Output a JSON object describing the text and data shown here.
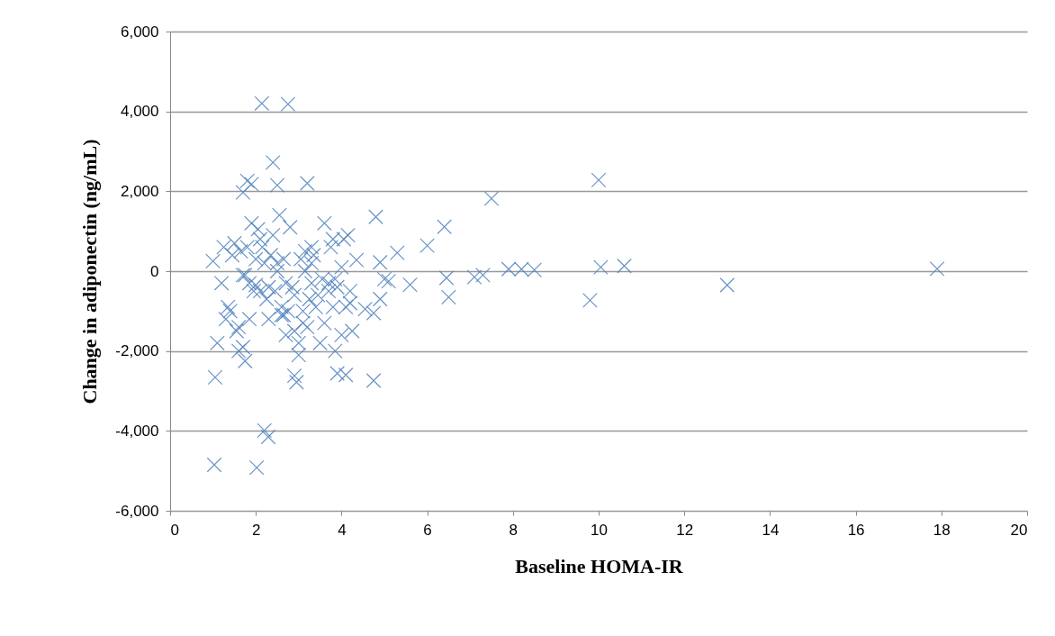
{
  "chart_data": {
    "type": "scatter",
    "xlabel": "Baseline HOMA-IR",
    "ylabel": "Change in adiponectin (ng/mL)",
    "xlim": [
      0,
      20
    ],
    "ylim": [
      -6000,
      6000
    ],
    "xticks": [
      0,
      2,
      4,
      6,
      8,
      10,
      12,
      14,
      16,
      18,
      20
    ],
    "yticks": [
      {
        "value": -6000,
        "label": "-6,000"
      },
      {
        "value": -4000,
        "label": "-4,000"
      },
      {
        "value": -2000,
        "label": "-2,000"
      },
      0,
      {
        "value": 2000,
        "label": "2,000"
      },
      {
        "value": 4000,
        "label": "4,000"
      },
      {
        "value": 6000,
        "label": "6,000"
      }
    ],
    "grid": "y",
    "marker": "cross",
    "series": [
      {
        "color": "#4f81bd",
        "x": [
          1.03,
          2.02,
          2.2,
          2.29,
          1.05,
          2.9,
          2.95,
          3.9,
          4.1,
          4.75,
          2.14,
          2.75,
          2.4,
          2.5,
          1.8,
          1.7,
          1.9,
          3.2,
          4.8,
          6.4,
          7.5,
          10.0,
          10.6,
          13.0,
          17.9,
          9.8,
          10.05,
          8.5,
          8.2,
          7.9,
          7.3,
          7.1,
          6.5,
          6.45,
          6.0,
          5.6,
          5.3,
          5.1,
          4.9,
          4.9,
          4.75,
          4.55,
          4.35,
          5.0,
          1.0,
          1.1,
          1.25,
          1.3,
          1.4,
          1.5,
          1.55,
          1.6,
          1.65,
          1.7,
          1.75,
          1.8,
          1.85,
          1.9,
          1.95,
          2.0,
          2.05,
          2.1,
          2.15,
          2.25,
          2.3,
          2.35,
          2.45,
          2.5,
          2.55,
          2.6,
          2.65,
          2.7,
          2.8,
          2.85,
          2.9,
          3.0,
          3.05,
          3.1,
          3.15,
          3.2,
          3.25,
          3.3,
          3.35,
          3.4,
          3.5,
          3.55,
          3.6,
          3.7,
          3.75,
          3.8,
          3.85,
          3.9,
          4.0,
          4.05,
          4.1,
          4.2,
          4.25,
          1.2,
          1.35,
          1.45,
          1.6,
          1.75,
          1.85,
          2.0,
          2.2,
          2.4,
          2.6,
          2.7,
          2.75,
          3.0,
          3.1,
          3.3,
          3.45,
          3.6,
          3.8,
          4.0,
          4.15,
          1.7,
          2.1,
          2.5,
          2.9,
          3.3,
          3.7,
          4.2,
          2.3,
          2.65,
          3.15,
          3.85
        ],
        "values": [
          -4850,
          -4920,
          -3990,
          -4150,
          -2660,
          -2620,
          -2780,
          -2560,
          -2600,
          -2740,
          4200,
          4180,
          2720,
          2150,
          2260,
          1970,
          2180,
          2200,
          1360,
          1110,
          1820,
          2280,
          130,
          -350,
          60,
          -730,
          100,
          30,
          50,
          50,
          -100,
          -150,
          -650,
          -170,
          640,
          -340,
          460,
          -250,
          -700,
          220,
          -1050,
          -950,
          280,
          -200,
          250,
          -1800,
          600,
          -1200,
          -1000,
          700,
          -1500,
          -2000,
          500,
          -1900,
          -2250,
          600,
          -300,
          1200,
          -500,
          300,
          1050,
          800,
          600,
          -700,
          -1200,
          400,
          -500,
          200,
          1400,
          -900,
          300,
          -1600,
          1100,
          -400,
          -1500,
          -2100,
          300,
          -1300,
          500,
          -1400,
          -700,
          600,
          400,
          -900,
          -1800,
          -200,
          1200,
          -300,
          600,
          800,
          -2000,
          -400,
          100,
          800,
          -900,
          -500,
          -1500,
          -300,
          -900,
          400,
          -1400,
          -100,
          -1200,
          -350,
          200,
          900,
          -1100,
          -300,
          -1000,
          -1800,
          -1000,
          200,
          -600,
          -1300,
          -900,
          -1600,
          900,
          -100,
          -500,
          0,
          -600,
          -300,
          -500,
          -800,
          -400,
          -1100,
          0,
          -200
        ]
      }
    ]
  }
}
